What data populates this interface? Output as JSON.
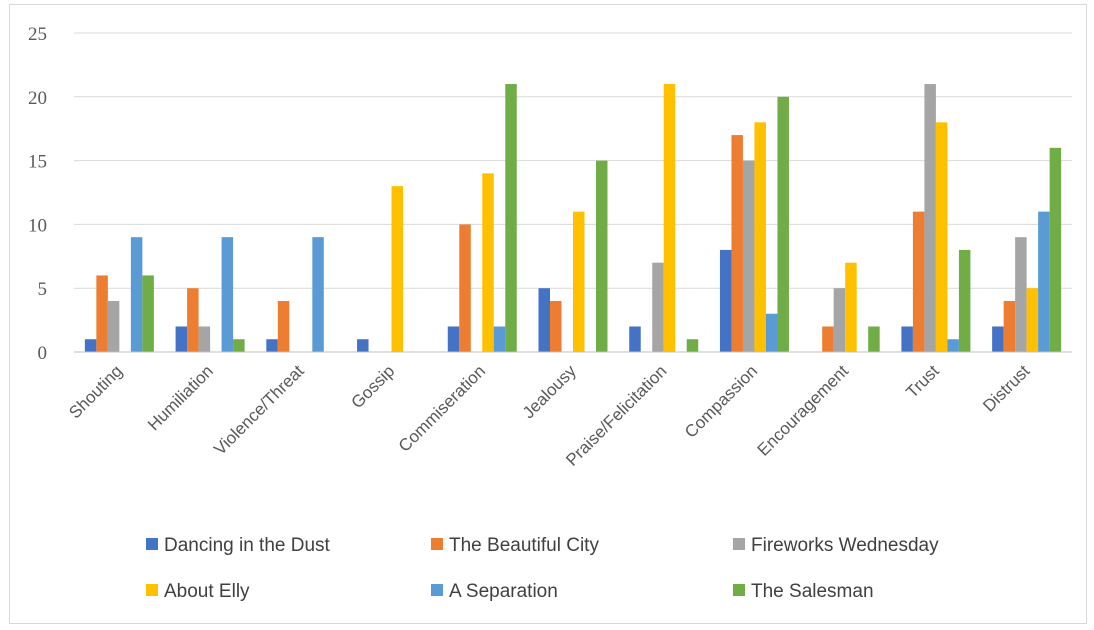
{
  "chart_data": {
    "type": "bar",
    "categories": [
      "Shouting",
      "Humiliation",
      "Violence/Threat",
      "Gossip",
      "Commiseration",
      "Jealousy",
      "Praise/Felicitation",
      "Compassion",
      "Encouragement",
      "Trust",
      "Distrust"
    ],
    "series": [
      {
        "name": "Dancing in the Dust",
        "color": "#4472c4",
        "values": [
          1,
          2,
          1,
          1,
          2,
          5,
          2,
          8,
          0,
          2,
          2
        ]
      },
      {
        "name": "The Beautiful City",
        "color": "#ed7d31",
        "values": [
          6,
          5,
          4,
          0,
          10,
          4,
          0,
          17,
          2,
          11,
          4
        ]
      },
      {
        "name": "Fireworks Wednesday",
        "color": "#a5a5a5",
        "values": [
          4,
          2,
          0,
          0,
          0,
          0,
          7,
          15,
          5,
          21,
          9
        ]
      },
      {
        "name": "About Elly",
        "color": "#ffc000",
        "values": [
          0,
          0,
          0,
          13,
          14,
          11,
          21,
          18,
          7,
          18,
          5
        ]
      },
      {
        "name": "A Separation",
        "color": "#5b9bd5",
        "values": [
          9,
          9,
          9,
          0,
          2,
          0,
          0,
          3,
          0,
          1,
          11
        ]
      },
      {
        "name": "The Salesman",
        "color": "#70ad47",
        "values": [
          6,
          1,
          0,
          0,
          21,
          15,
          1,
          20,
          2,
          8,
          16
        ]
      }
    ],
    "yticks": [
      "0",
      "5",
      "10",
      "15",
      "20",
      "25"
    ],
    "ylim": [
      0,
      25
    ],
    "title": "",
    "xlabel": "",
    "ylabel": "",
    "grid": true,
    "legend_position": "bottom"
  }
}
